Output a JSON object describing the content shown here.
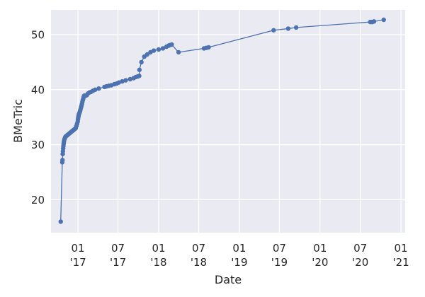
{
  "chart_data": {
    "type": "line",
    "title": "",
    "xlabel": "Date",
    "ylabel": "BMeTric",
    "x_axis_type": "date",
    "xlim": [
      "2016-09-01",
      "2021-01-20"
    ],
    "ylim": [
      14,
      54.5
    ],
    "grid": true,
    "legend": "none",
    "style": {
      "background": "#eaeaf2",
      "grid": "#ffffff",
      "line": "#4c72b0"
    },
    "x_ticks": [
      {
        "value": "2017-01-01",
        "label": [
          "01",
          "'17"
        ]
      },
      {
        "value": "2017-07-01",
        "label": [
          "07",
          "'17"
        ]
      },
      {
        "value": "2018-01-01",
        "label": [
          "01",
          "'18"
        ]
      },
      {
        "value": "2018-07-01",
        "label": [
          "07",
          "'18"
        ]
      },
      {
        "value": "2019-01-01",
        "label": [
          "01",
          "'19"
        ]
      },
      {
        "value": "2019-07-01",
        "label": [
          "07",
          "'19"
        ]
      },
      {
        "value": "2020-01-01",
        "label": [
          "01",
          "'20"
        ]
      },
      {
        "value": "2020-07-01",
        "label": [
          "07",
          "'20"
        ]
      },
      {
        "value": "2021-01-01",
        "label": [
          "01",
          "'21"
        ]
      }
    ],
    "y_ticks": [
      {
        "value": 20,
        "label": "20"
      },
      {
        "value": 30,
        "label": "30"
      },
      {
        "value": 40,
        "label": "40"
      },
      {
        "value": 50,
        "label": "50"
      }
    ],
    "series": [
      {
        "x": [
          "2016-10-15",
          "2016-10-22",
          "2016-10-23",
          "2016-10-24",
          "2016-10-25",
          "2016-10-26",
          "2016-10-27",
          "2016-10-28",
          "2016-10-29",
          "2016-10-30",
          "2016-11-01",
          "2016-11-03",
          "2016-11-05",
          "2016-11-07",
          "2016-11-10",
          "2016-11-13",
          "2016-11-16",
          "2016-11-19",
          "2016-11-22",
          "2016-11-25",
          "2016-11-28",
          "2016-12-01",
          "2016-12-04",
          "2016-12-07",
          "2016-12-10",
          "2016-12-13",
          "2016-12-16",
          "2016-12-19",
          "2016-12-22",
          "2016-12-25",
          "2016-12-28",
          "2016-12-31",
          "2017-01-01",
          "2017-01-02",
          "2017-01-03",
          "2017-01-04",
          "2017-01-05",
          "2017-01-07",
          "2017-01-09",
          "2017-01-11",
          "2017-01-13",
          "2017-01-15",
          "2017-01-17",
          "2017-01-19",
          "2017-01-21",
          "2017-01-23",
          "2017-01-25",
          "2017-01-27",
          "2017-01-29",
          "2017-02-01",
          "2017-02-05",
          "2017-02-10",
          "2017-02-15",
          "2017-02-22",
          "2017-03-01",
          "2017-03-10",
          "2017-03-20",
          "2017-04-05",
          "2017-05-01",
          "2017-05-10",
          "2017-05-20",
          "2017-06-01",
          "2017-06-15",
          "2017-06-25",
          "2017-07-05",
          "2017-07-20",
          "2017-08-05",
          "2017-08-25",
          "2017-09-10",
          "2017-09-20",
          "2017-09-28",
          "2017-10-05",
          "2017-10-06",
          "2017-10-15",
          "2017-10-28",
          "2017-11-10",
          "2017-11-25",
          "2017-12-10",
          "2018-01-01",
          "2018-01-20",
          "2018-02-05",
          "2018-02-15",
          "2018-02-20",
          "2018-03-01",
          "2018-04-01",
          "2018-07-25",
          "2018-08-05",
          "2018-08-15",
          "2019-06-05",
          "2019-08-10",
          "2019-09-15",
          "2020-08-15",
          "2020-08-20",
          "2020-08-25",
          "2020-09-01",
          "2020-10-15"
        ],
        "y": [
          16.0,
          26.8,
          27.2,
          28.3,
          28.8,
          29.3,
          29.7,
          30.1,
          30.4,
          30.7,
          31.0,
          31.2,
          31.4,
          31.5,
          31.6,
          31.7,
          31.8,
          31.9,
          32.0,
          32.1,
          32.2,
          32.3,
          32.4,
          32.5,
          32.6,
          32.7,
          32.8,
          32.9,
          33.0,
          33.4,
          33.8,
          34.2,
          34.6,
          34.9,
          35.1,
          35.3,
          35.5,
          35.7,
          35.9,
          36.2,
          36.5,
          36.8,
          37.1,
          37.4,
          37.8,
          38.1,
          38.4,
          38.7,
          38.9,
          38.9,
          38.9,
          39.0,
          39.3,
          39.5,
          39.6,
          39.8,
          40.0,
          40.2,
          40.5,
          40.6,
          40.7,
          40.8,
          41.0,
          41.1,
          41.3,
          41.5,
          41.7,
          41.9,
          42.1,
          42.3,
          42.4,
          42.5,
          43.6,
          45.0,
          46.0,
          46.4,
          46.8,
          47.1,
          47.3,
          47.5,
          47.8,
          48.0,
          48.1,
          48.2,
          46.8,
          47.5,
          47.6,
          47.7,
          50.8,
          51.1,
          51.3,
          52.3,
          52.3,
          52.3,
          52.4,
          52.7
        ]
      }
    ]
  }
}
